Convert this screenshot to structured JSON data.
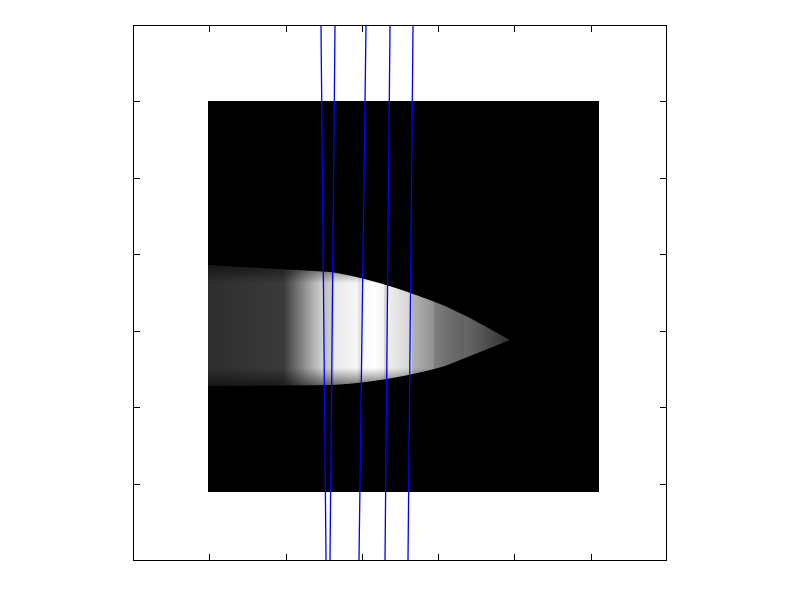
{
  "figure": {
    "background": "#ffffff",
    "axes_frame_color": "#000000",
    "image_background": "#000000",
    "line_color": "#0000ff",
    "ticks": "unlabeled",
    "plume_description_colors": {
      "core": "#ffffff",
      "tail": "#2e2e2e",
      "tip": "#9a9a9a"
    }
  }
}
